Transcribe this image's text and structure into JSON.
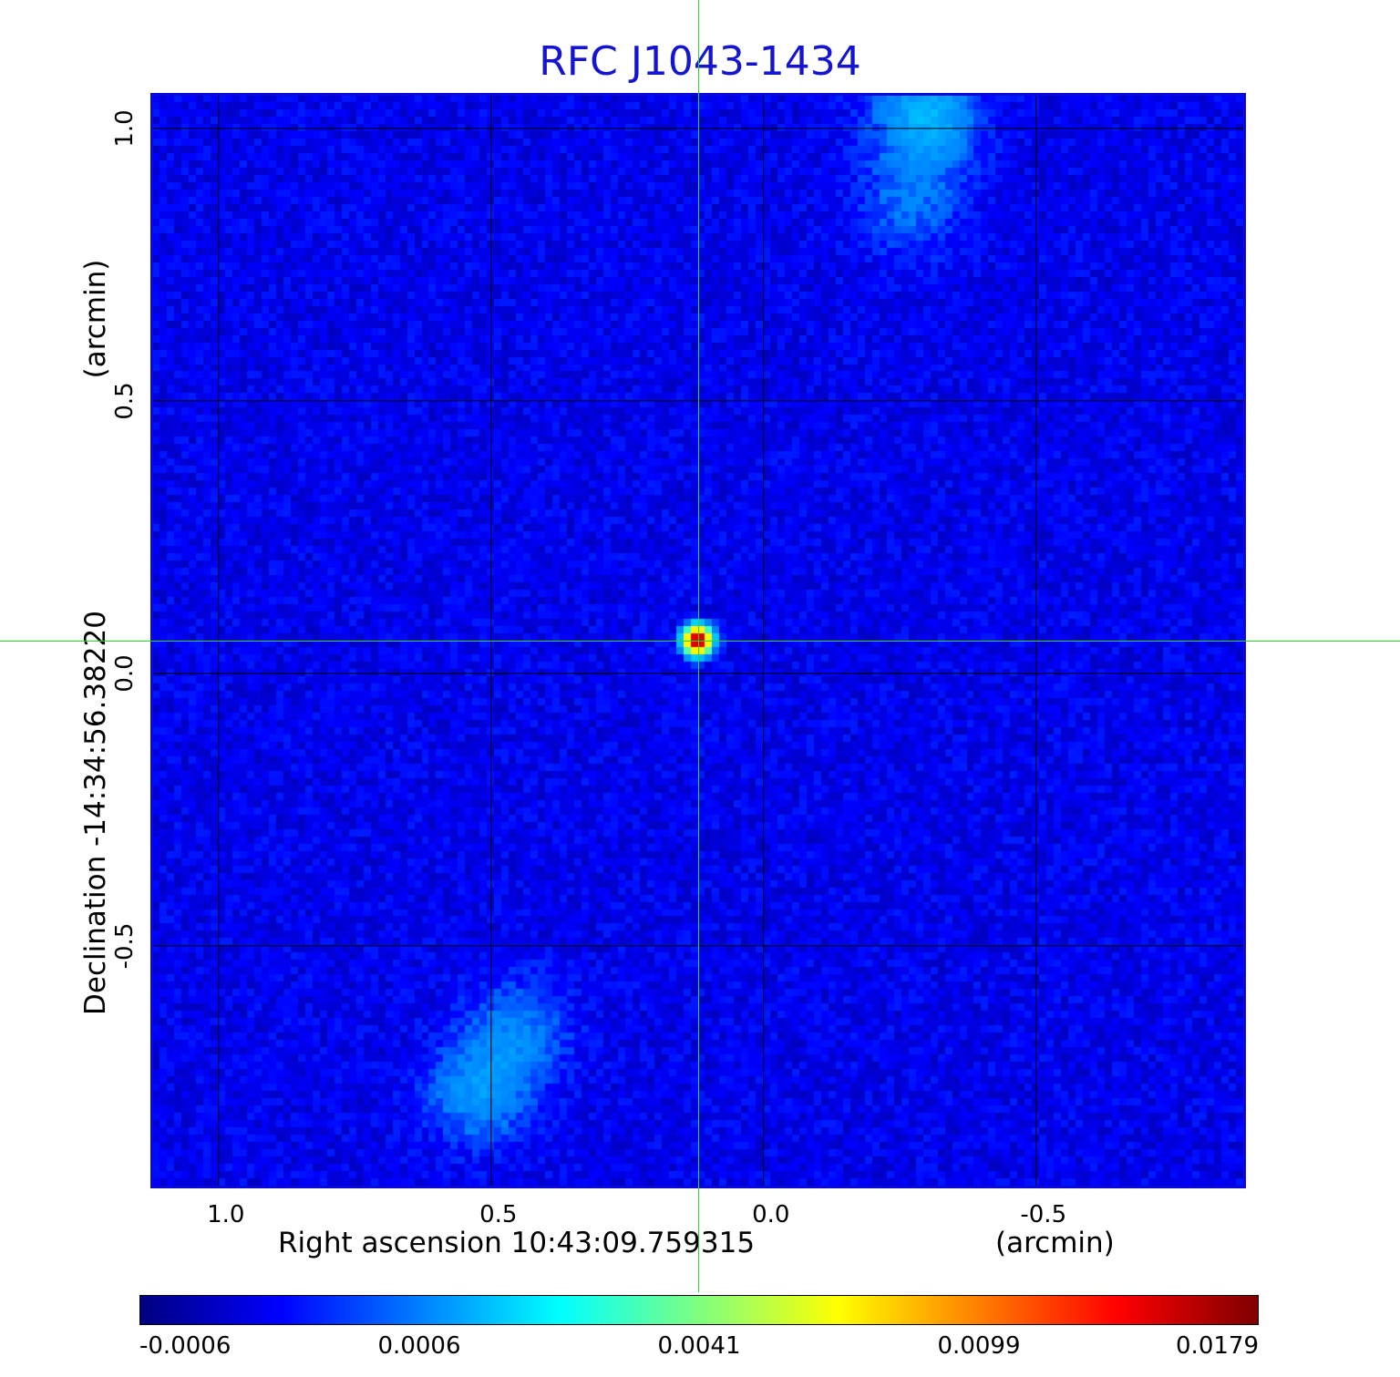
{
  "chart_data": {
    "type": "heatmap",
    "title": "RFC J1043-1434",
    "xlabel": "Right ascension  10:43:09.759315",
    "xunit": "(arcmin)",
    "ylabel": "Declination  -14:34:56.38220",
    "yunit": "(arcmin)",
    "xlim": [
      1.12,
      -0.88
    ],
    "ylim": [
      -0.94,
      1.06
    ],
    "x_ticks": [
      "1.0",
      "0.5",
      "0.0",
      "-0.5"
    ],
    "x_tick_values": [
      1.0,
      0.5,
      0.0,
      -0.5
    ],
    "y_ticks": [
      "-0.5",
      "0.0",
      "0.5",
      "1.0"
    ],
    "y_tick_values": [
      -0.5,
      0.0,
      0.5,
      1.0
    ],
    "grid": true,
    "colormap": "jet",
    "colorbar": {
      "labels": [
        "-0.0006",
        "0.0006",
        "0.0041",
        "0.0099",
        "0.0179"
      ],
      "min": -0.0006,
      "max": 0.0179
    },
    "crosshair": {
      "x": 0.12,
      "y": 0.06,
      "color": "#22dd22"
    },
    "peak": {
      "x": 0.12,
      "y": 0.06,
      "value": 0.0179
    },
    "diffuse_features": [
      {
        "x": -0.3,
        "y": 1.02,
        "value": 0.0025
      },
      {
        "x": -0.27,
        "y": 0.86,
        "value": 0.0011
      },
      {
        "x": 0.45,
        "y": -0.66,
        "value": 0.0013
      },
      {
        "x": 0.52,
        "y": -0.77,
        "value": 0.0017
      }
    ]
  },
  "colors": {
    "title": "#1414d2",
    "frame": "#0a0ad8",
    "crosshair": "#22dd22",
    "grid": "#000000"
  }
}
